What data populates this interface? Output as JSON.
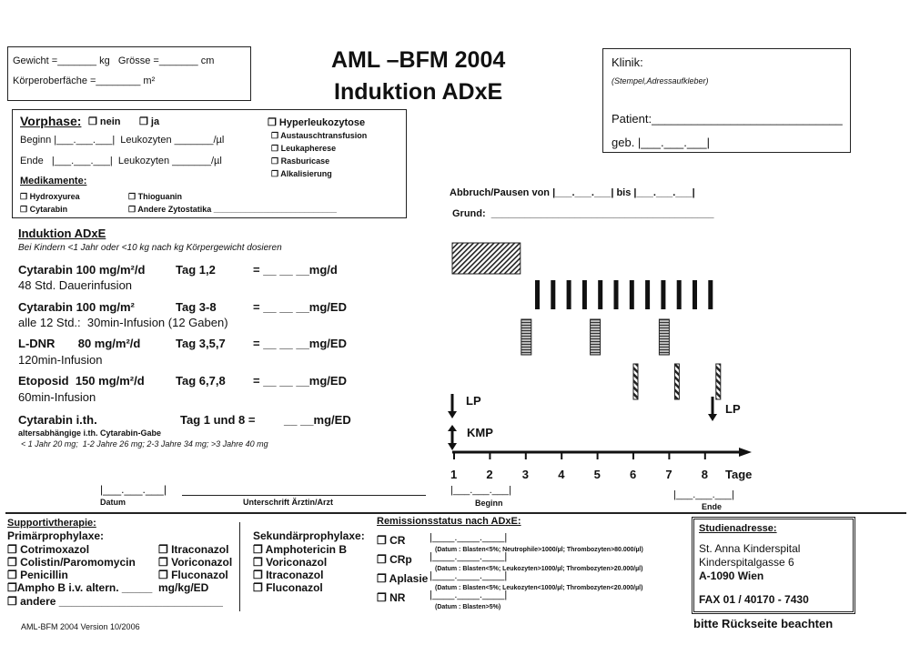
{
  "header": {
    "weight_line": "Gewicht =_______ kg   Grösse =_______ cm",
    "bsa_line": "Körperoberfäche =________ m²",
    "title": "AML –BFM 2004",
    "subtitle": "Induktion ADxE"
  },
  "clinic": {
    "label": "Klinik:",
    "hint": "(Stempel,Adressaufkleber)",
    "patient": "Patient:_____________________________",
    "birth": "geb. |___.___.___|"
  },
  "prephase": {
    "title": "Vorphase:",
    "no": "❐ nein",
    "yes": "❐ ja",
    "start": "Beginn |___.___.___|  Leukozyten _______/µl",
    "end": "Ende   |___.___.___|  Leukozyten _______/µl",
    "meds_title": "Medikamente:",
    "meds": [
      "❐ Hydroxyurea",
      "❐ Thioguanin",
      "❐ Cytarabin",
      "❐ Andere Zytostatika ___________________________"
    ],
    "hyper_title": "❐ Hyperleukozytose",
    "hyper_items": [
      "❐ Austauschtransfusion",
      "❐ Leukapherese",
      "❐ Rasburicase",
      "❐ Alkalisierung"
    ]
  },
  "pause": {
    "line": "Abbruch/Pausen von |___.___.___| bis |___.___.___|",
    "reason": "Grund:  ________________________________________"
  },
  "induction": {
    "title": "Induktion ADxE",
    "note": "Bei Kindern <1 Jahr oder <10 kg nach kg Körpergewicht dosieren",
    "drugs": [
      {
        "name": "Cytarabin 100 mg/m²/d",
        "days": "Tag 1,2",
        "dose": "= __ __ __mg/d",
        "info": "48 Std. Dauerinfusion"
      },
      {
        "name": "Cytarabin 100 mg/m²",
        "days": "Tag 3-8",
        "dose": "= __ __ __mg/ED",
        "info": "alle 12 Std.:  30min-Infusion (12 Gaben)"
      },
      {
        "name": "L-DNR       80 mg/m²/d",
        "days": "Tag 3,5,7",
        "dose": "= __ __ __mg/ED",
        "info": "120min-Infusion"
      },
      {
        "name": "Etoposid  150 mg/m²/d",
        "days": "Tag 6,7,8",
        "dose": "= __ __ __mg/ED",
        "info": "60min-Infusion"
      }
    ],
    "ith": {
      "name": "Cytarabin i.th.",
      "days": "Tag 1 und 8 =",
      "dose": "__ __mg/ED",
      "note1": "altersabhängige i.th. Cytarabin-Gabe",
      "note2": "< 1 Jahr 20 mg;  1-2 Jahre 26 mg; 2-3 Jahre 34 mg; >3 Jahre 40 mg"
    },
    "date_field": "|___.___.___|",
    "date_label": "Datum",
    "signature_label": "Unterschrift Ärztin/Arzt"
  },
  "timeline": {
    "days": [
      "1",
      "2",
      "3",
      "4",
      "5",
      "6",
      "7",
      "8"
    ],
    "axis_label": "Tage",
    "lp": "LP",
    "kmp": "KMP",
    "begin_field": "|___.___.___|",
    "begin_label": "Beginn",
    "end_field": "|___.___.___|",
    "end_label": "Ende",
    "cytarabin_continuous_days": [
      1,
      2
    ],
    "cytarabin_doses": 12,
    "ldnr_days": [
      3,
      5,
      7
    ],
    "etoposid_days": [
      6,
      7,
      8
    ]
  },
  "support": {
    "title": "Supportivtherapie:",
    "primary_title": "Primärprophylaxe:",
    "primary_left": [
      "❐ Cotrimoxazol",
      "❐ Colistin/Paromomycin",
      "❐ Penicillin",
      "❐Ampho B i.v. altern. _____",
      "❐ andere ___________________________"
    ],
    "primary_right": [
      "❐ Itraconazol",
      "❐ Voriconazol",
      "❐ Fluconazol",
      "mg/kg/ED"
    ],
    "secondary_title": "Sekundärprophylaxe:",
    "secondary": [
      "❐ Amphotericin B",
      "❐ Voriconazol",
      "❐ Itraconazol",
      "❐ Fluconazol"
    ]
  },
  "remission": {
    "title": "Remissionsstatus nach ADxE:",
    "items": [
      {
        "label": "❐ CR",
        "field": "|____.____.____|",
        "criteria": "(Datum : Blasten<5%; Neutrophile>1000/µl; Thrombozyten>80.000/µl)"
      },
      {
        "label": "❐ CRp",
        "field": "|____.____.____|",
        "criteria": "(Datum : Blasten<5%; Leukozyten>1000/µl; Thrombozyten>20.000/µl)"
      },
      {
        "label": "❐ Aplasie",
        "field": "|____.____.____|",
        "criteria": "(Datum : Blasten<5%; Leukozyten<1000/µl; Thrombozyten<20.000/µl)"
      },
      {
        "label": "❐ NR",
        "field": "|____.____.____|",
        "criteria": "(Datum : Blasten>5%)"
      }
    ]
  },
  "study": {
    "title": "Studienadresse:",
    "line1": "St. Anna Kinderspital",
    "line2": "Kinderspitalgasse 6",
    "line3": "A-1090 Wien",
    "fax": "FAX 01 / 40170 - 7430"
  },
  "footer": {
    "version": "AML-BFM 2004 Version 10/2006",
    "back": "bitte Rückseite beachten"
  }
}
